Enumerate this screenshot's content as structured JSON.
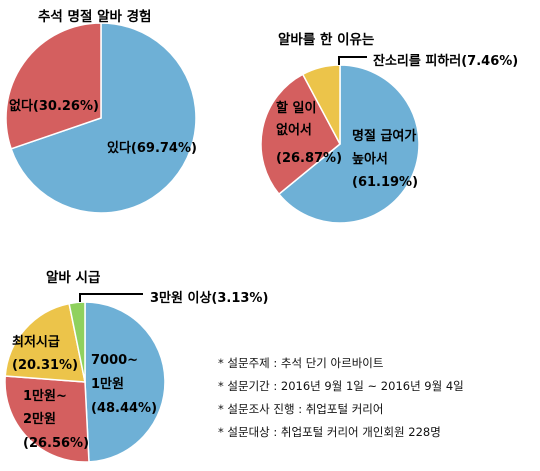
{
  "chart_data": [
    {
      "type": "pie",
      "title": "추석 명절 알바 경험",
      "categories": [
        "있다",
        "없다"
      ],
      "values": [
        69.74,
        30.26
      ],
      "labels": [
        "있다(69.74%)",
        "없다(30.26%)"
      ],
      "colors": [
        "#6eb0d6",
        "#d45f5f"
      ]
    },
    {
      "type": "pie",
      "title": "알바를 한 이유는",
      "categories": [
        "명절 급여가 높아서",
        "할 일이 없어서",
        "잔소리를 피하러"
      ],
      "values": [
        61.19,
        26.87,
        7.46
      ],
      "labels": [
        [
          "명절 급여가",
          "높아서",
          "(61.19%)"
        ],
        [
          "할 일이",
          "없어서",
          "(26.87%)"
        ],
        [
          "잔소리를 피하러(7.46%)"
        ]
      ],
      "colors": [
        "#6eb0d6",
        "#d45f5f",
        "#ecc44a"
      ]
    },
    {
      "type": "pie",
      "title": "알바 시급",
      "categories": [
        "7000~1만원",
        "1만원~2만원",
        "최저시급",
        "3만원 이상"
      ],
      "values": [
        48.44,
        26.56,
        20.31,
        3.13
      ],
      "labels": [
        [
          "7000~",
          "1만원",
          "(48.44%)"
        ],
        [
          "1만원~",
          "2만원",
          "(26.56%)"
        ],
        [
          "최저시급",
          "(20.31%)"
        ],
        [
          "3만원 이상(3.13%)"
        ]
      ],
      "colors": [
        "#6eb0d6",
        "#d45f5f",
        "#ecc44a",
        "#8fd15e"
      ]
    }
  ],
  "notes": [
    "* 설문주제 : 추석 단기 아르바이트",
    "* 설문기간 : 2016년 9월 1일 ~ 2016년 9월 4일",
    "* 설문조사 진행 : 취업포털 커리어",
    "* 설문대상 : 취업포털 커리어 개인회원 228명"
  ]
}
